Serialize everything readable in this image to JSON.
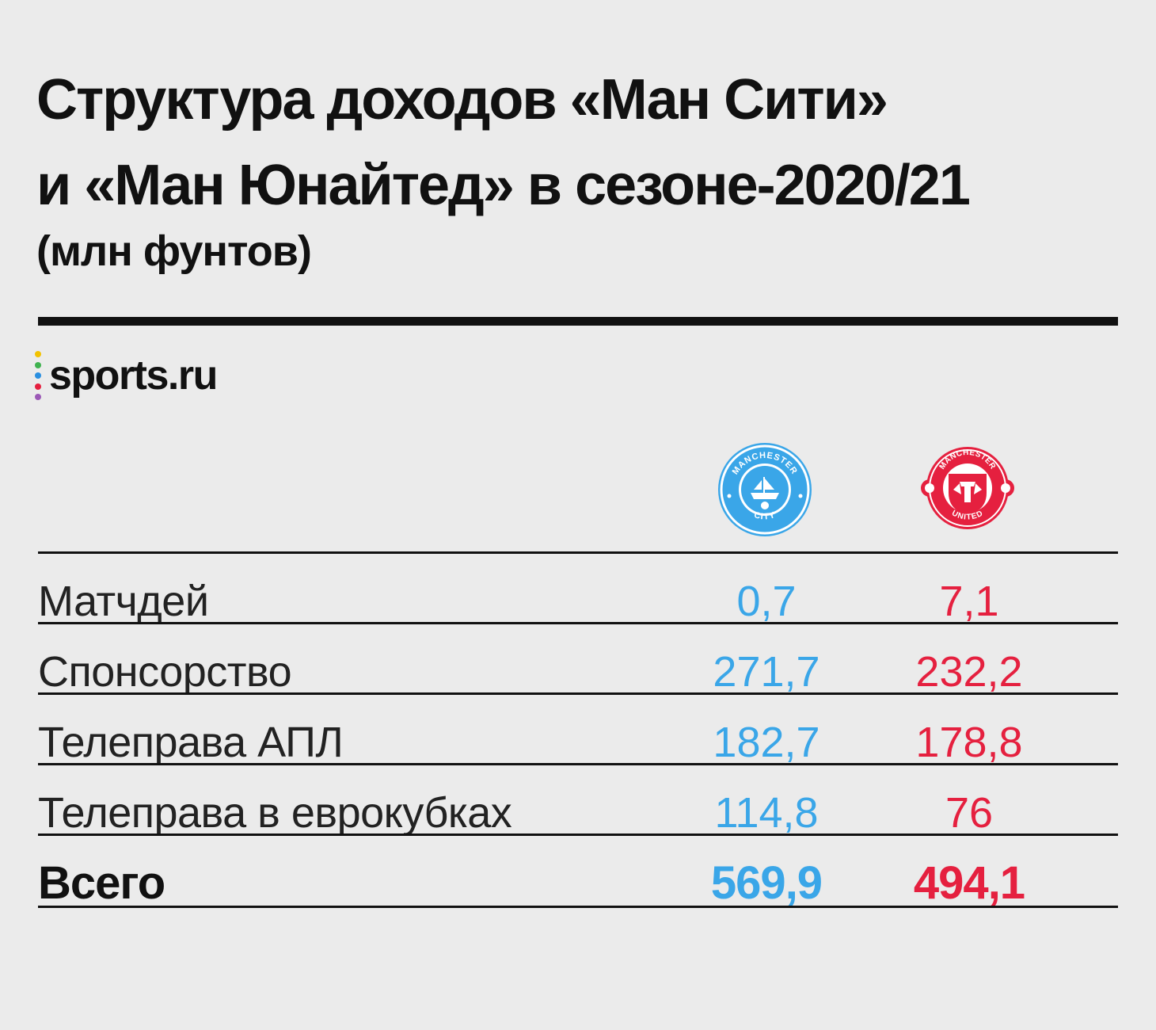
{
  "chart_data": {
    "type": "table",
    "title": "Структура доходов «Ман Сити» и «Ман Юнайтед» в сезоне-2020/21",
    "title_lines": [
      "Структура доходов «Ман Сити»",
      "и «Ман Юнайтед» в сезоне-2020/21"
    ],
    "subtitle": "(млн фунтов)",
    "columns": [
      "Manchester City",
      "Manchester United"
    ],
    "rows": [
      {
        "label": "Матчдей",
        "values": [
          "0,7",
          "7,1"
        ]
      },
      {
        "label": "Спонсорство",
        "values": [
          "271,7",
          "232,2"
        ]
      },
      {
        "label": "Телеправа АПЛ",
        "values": [
          "182,7",
          "178,8"
        ]
      },
      {
        "label": "Телеправа в еврокубках",
        "values": [
          "114,8",
          "76"
        ]
      }
    ],
    "total": {
      "label": "Всего",
      "values": [
        "569,9",
        "494,1"
      ]
    },
    "colors": {
      "city": "#3aa6e8",
      "united": "#e5203f"
    }
  },
  "brand": {
    "name": "sports.ru",
    "dot_colors": [
      "#f2c200",
      "#3fb24f",
      "#2a8fe0",
      "#e5203f",
      "#9b59b6"
    ]
  },
  "logos": {
    "city": {
      "icon": "manchester-city-crest-icon",
      "ring_top": "MANCHESTER",
      "ring_bottom": "CITY",
      "color": "#3aa6e8"
    },
    "united": {
      "icon": "manchester-united-crest-icon",
      "ring_top": "MANCHESTER",
      "ring_bottom": "UNITED",
      "color": "#e5203f"
    }
  }
}
